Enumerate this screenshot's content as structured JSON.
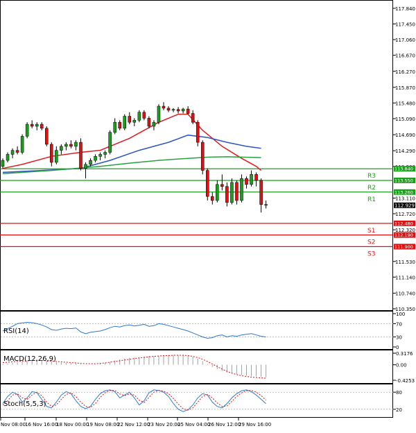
{
  "chart_data": [
    {
      "panel": "price",
      "type": "candlestick",
      "y_ticks": [
        "117.840",
        "117.450",
        "117.060",
        "116.670",
        "116.270",
        "115.870",
        "115.480",
        "115.090",
        "114.690",
        "114.290",
        "113.900",
        "113.110",
        "112.720",
        "112.320",
        "111.530",
        "111.140",
        "110.740",
        "110.350"
      ],
      "ylim": [
        110.35,
        117.84
      ],
      "levels": [
        {
          "name": "R3",
          "value": 113.84,
          "value_label": "113.840",
          "color": "#18a018"
        },
        {
          "name": "R2",
          "value": 113.55,
          "value_label": "113.550",
          "color": "#18a018"
        },
        {
          "name": "R1",
          "value": 113.26,
          "value_label": "113.260",
          "color": "#18a018"
        },
        {
          "name": "S1",
          "value": 112.48,
          "value_label": "112.480",
          "color": "#e01010"
        },
        {
          "name": "S2",
          "value": 112.19,
          "value_label": "112.190",
          "color": "#e01010"
        },
        {
          "name": "S3",
          "value": 111.9,
          "value_label": "111.900",
          "color": "#e01010"
        }
      ],
      "last_price_label": "112.929",
      "last_price": 112.93,
      "candles": [
        [
          113.9,
          114.1,
          113.85,
          114.05
        ],
        [
          114.05,
          114.25,
          114.0,
          114.2
        ],
        [
          114.2,
          114.35,
          114.1,
          114.3
        ],
        [
          114.3,
          114.4,
          114.2,
          114.25
        ],
        [
          114.25,
          114.7,
          114.2,
          114.65
        ],
        [
          114.65,
          115.0,
          114.6,
          114.95
        ],
        [
          114.95,
          115.05,
          114.85,
          114.9
        ],
        [
          114.9,
          115.0,
          114.8,
          114.95
        ],
        [
          114.95,
          115.0,
          114.8,
          114.85
        ],
        [
          114.85,
          114.9,
          114.4,
          114.45
        ],
        [
          114.45,
          114.5,
          113.9,
          114.0
        ],
        [
          114.0,
          114.4,
          113.95,
          114.3
        ],
        [
          114.3,
          114.45,
          114.2,
          114.4
        ],
        [
          114.4,
          114.5,
          114.3,
          114.45
        ],
        [
          114.45,
          114.55,
          114.35,
          114.4
        ],
        [
          114.4,
          114.55,
          114.3,
          114.5
        ],
        [
          114.5,
          114.6,
          113.8,
          113.85
        ],
        [
          113.85,
          114.0,
          113.6,
          113.95
        ],
        [
          113.95,
          114.1,
          113.9,
          114.05
        ],
        [
          114.05,
          114.2,
          114.0,
          114.15
        ],
        [
          114.15,
          114.25,
          114.05,
          114.2
        ],
        [
          114.2,
          114.3,
          114.1,
          114.25
        ],
        [
          114.25,
          114.8,
          114.2,
          114.75
        ],
        [
          114.75,
          115.1,
          114.7,
          115.0
        ],
        [
          115.0,
          115.05,
          114.8,
          114.85
        ],
        [
          114.85,
          115.2,
          114.8,
          115.15
        ],
        [
          115.15,
          115.25,
          114.95,
          115.0
        ],
        [
          115.0,
          115.1,
          114.9,
          115.05
        ],
        [
          115.05,
          115.3,
          115.0,
          115.25
        ],
        [
          115.25,
          115.3,
          115.05,
          115.1
        ],
        [
          115.1,
          115.15,
          114.85,
          114.9
        ],
        [
          114.9,
          115.05,
          114.8,
          115.0
        ],
        [
          115.0,
          115.45,
          114.95,
          115.4
        ],
        [
          115.4,
          115.5,
          115.3,
          115.35
        ],
        [
          115.35,
          115.4,
          115.25,
          115.3
        ],
        [
          115.3,
          115.35,
          115.25,
          115.32
        ],
        [
          115.32,
          115.38,
          115.22,
          115.28
        ],
        [
          115.28,
          115.36,
          115.22,
          115.33
        ],
        [
          115.33,
          115.4,
          115.2,
          115.22
        ],
        [
          115.22,
          115.3,
          114.95,
          115.0
        ],
        [
          115.0,
          115.05,
          114.4,
          114.5
        ],
        [
          114.5,
          114.55,
          113.7,
          113.8
        ],
        [
          113.8,
          113.85,
          113.05,
          113.15
        ],
        [
          113.15,
          113.25,
          112.95,
          113.05
        ],
        [
          113.05,
          113.55,
          113.0,
          113.45
        ],
        [
          113.45,
          113.7,
          113.3,
          113.4
        ],
        [
          113.4,
          113.5,
          112.9,
          113.0
        ],
        [
          113.0,
          113.6,
          112.95,
          113.5
        ],
        [
          113.5,
          113.55,
          112.95,
          113.05
        ],
        [
          113.05,
          113.7,
          113.0,
          113.6
        ],
        [
          113.6,
          113.65,
          113.35,
          113.45
        ],
        [
          113.45,
          113.8,
          113.4,
          113.7
        ],
        [
          113.7,
          113.75,
          113.4,
          113.55
        ],
        [
          113.55,
          113.6,
          112.75,
          112.95
        ],
        [
          112.95,
          113.05,
          112.85,
          112.93
        ]
      ],
      "series": [
        {
          "name": "",
          "color": "#e01c1c",
          "points": [
            [
              0,
              113.85
            ],
            [
              4,
              113.95
            ],
            [
              10,
              114.15
            ],
            [
              16,
              114.25
            ],
            [
              20,
              114.3
            ],
            [
              26,
              114.6
            ],
            [
              32,
              115.0
            ],
            [
              36,
              115.2
            ],
            [
              38,
              115.2
            ],
            [
              41,
              114.8
            ],
            [
              45,
              114.4
            ],
            [
              49,
              114.1
            ],
            [
              52,
              113.9
            ],
            [
              53,
              113.8
            ]
          ]
        },
        {
          "name": "",
          "color": "#2c54c8",
          "points": [
            [
              0,
              113.75
            ],
            [
              8,
              113.8
            ],
            [
              16,
              113.85
            ],
            [
              22,
              114.05
            ],
            [
              28,
              114.3
            ],
            [
              34,
              114.5
            ],
            [
              38,
              114.68
            ],
            [
              42,
              114.62
            ],
            [
              46,
              114.5
            ],
            [
              50,
              114.4
            ],
            [
              53,
              114.35
            ]
          ]
        },
        {
          "name": "",
          "color": "#28a040",
          "points": [
            [
              0,
              113.72
            ],
            [
              10,
              113.8
            ],
            [
              20,
              113.9
            ],
            [
              26,
              113.98
            ],
            [
              32,
              114.05
            ],
            [
              38,
              114.1
            ],
            [
              42,
              114.13
            ],
            [
              46,
              114.14
            ],
            [
              53,
              114.12
            ]
          ]
        }
      ],
      "x_tick_labels": [
        "Nov 08:00",
        "16 Nov 16:00",
        "18 Nov 00:00",
        "19 Nov 08:00",
        "22 Nov 12:00",
        "23 Nov 20:00",
        "25 Nov 04:00",
        "26 Nov 12:00",
        "29 Nov 16:00"
      ]
    },
    {
      "panel": "rsi",
      "type": "line",
      "label": "RSI(14)",
      "y_ticks": [
        "100",
        "70",
        "30",
        "0"
      ],
      "ylim": [
        0,
        100
      ],
      "line_color": "#2c78d0",
      "values": [
        48,
        55,
        62,
        70,
        72,
        74,
        73,
        70,
        66,
        60,
        52,
        50,
        54,
        56,
        55,
        57,
        45,
        40,
        44,
        46,
        48,
        52,
        58,
        62,
        60,
        64,
        66,
        63,
        65,
        68,
        62,
        64,
        70,
        68,
        64,
        60,
        56,
        52,
        48,
        42,
        36,
        30,
        26,
        28,
        34,
        36,
        30,
        34,
        32,
        36,
        38,
        40,
        36,
        32,
        30
      ]
    },
    {
      "panel": "macd",
      "type": "bar+line",
      "label": "MACD(12,26,9)",
      "y_ticks": [
        "0.3176",
        "0.00",
        "-0.4253"
      ],
      "ylim": [
        -0.4253,
        0.3176
      ],
      "bars": [
        0.02,
        0.03,
        0.05,
        0.06,
        0.08,
        0.1,
        0.11,
        0.12,
        0.12,
        0.11,
        0.09,
        0.07,
        0.06,
        0.05,
        0.05,
        0.04,
        0.02,
        0.0,
        0.0,
        0.01,
        0.03,
        0.05,
        0.08,
        0.12,
        0.15,
        0.17,
        0.19,
        0.2,
        0.21,
        0.23,
        0.24,
        0.24,
        0.25,
        0.26,
        0.27,
        0.27,
        0.27,
        0.26,
        0.25,
        0.22,
        0.17,
        0.1,
        0.02,
        -0.06,
        -0.12,
        -0.17,
        -0.21,
        -0.24,
        -0.26,
        -0.28,
        -0.3,
        -0.31,
        -0.32,
        -0.33,
        -0.34
      ],
      "signal": [
        0.06,
        0.07,
        0.08,
        0.09,
        0.1,
        0.11,
        0.12,
        0.12,
        0.12,
        0.11,
        0.1,
        0.09,
        0.08,
        0.07,
        0.06,
        0.05,
        0.04,
        0.03,
        0.03,
        0.03,
        0.04,
        0.05,
        0.07,
        0.09,
        0.11,
        0.13,
        0.15,
        0.17,
        0.19,
        0.2,
        0.22,
        0.23,
        0.24,
        0.25,
        0.25,
        0.26,
        0.26,
        0.26,
        0.25,
        0.23,
        0.2,
        0.15,
        0.09,
        0.02,
        -0.05,
        -0.12,
        -0.18,
        -0.23,
        -0.27,
        -0.3,
        -0.32,
        -0.34,
        -0.35,
        -0.36,
        -0.37
      ],
      "bar_color": "#a0a0a0",
      "signal_color": "#e01010"
    },
    {
      "panel": "stoch",
      "type": "line",
      "label": "Stoch(5,5,3)",
      "y_ticks": [
        "80",
        "20"
      ],
      "ylim": [
        0,
        100
      ],
      "main": [
        40,
        65,
        80,
        72,
        45,
        60,
        82,
        78,
        55,
        30,
        25,
        45,
        70,
        82,
        75,
        50,
        30,
        22,
        30,
        55,
        75,
        85,
        88,
        82,
        60,
        70,
        80,
        60,
        35,
        50,
        78,
        88,
        86,
        80,
        65,
        40,
        20,
        12,
        18,
        35,
        60,
        75,
        70,
        45,
        30,
        25,
        40,
        60,
        75,
        85,
        88,
        82,
        70,
        55,
        40
      ],
      "signal": [
        35,
        50,
        70,
        75,
        60,
        55,
        70,
        80,
        68,
        45,
        30,
        35,
        55,
        72,
        78,
        65,
        45,
        30,
        26,
        40,
        62,
        78,
        86,
        86,
        74,
        68,
        74,
        70,
        52,
        44,
        62,
        80,
        86,
        84,
        75,
        58,
        38,
        22,
        17,
        25,
        45,
        65,
        72,
        60,
        42,
        30,
        32,
        48,
        65,
        78,
        85,
        86,
        80,
        68,
        52
      ],
      "main_color": "#2c78d0",
      "signal_color": "#e01010"
    }
  ]
}
